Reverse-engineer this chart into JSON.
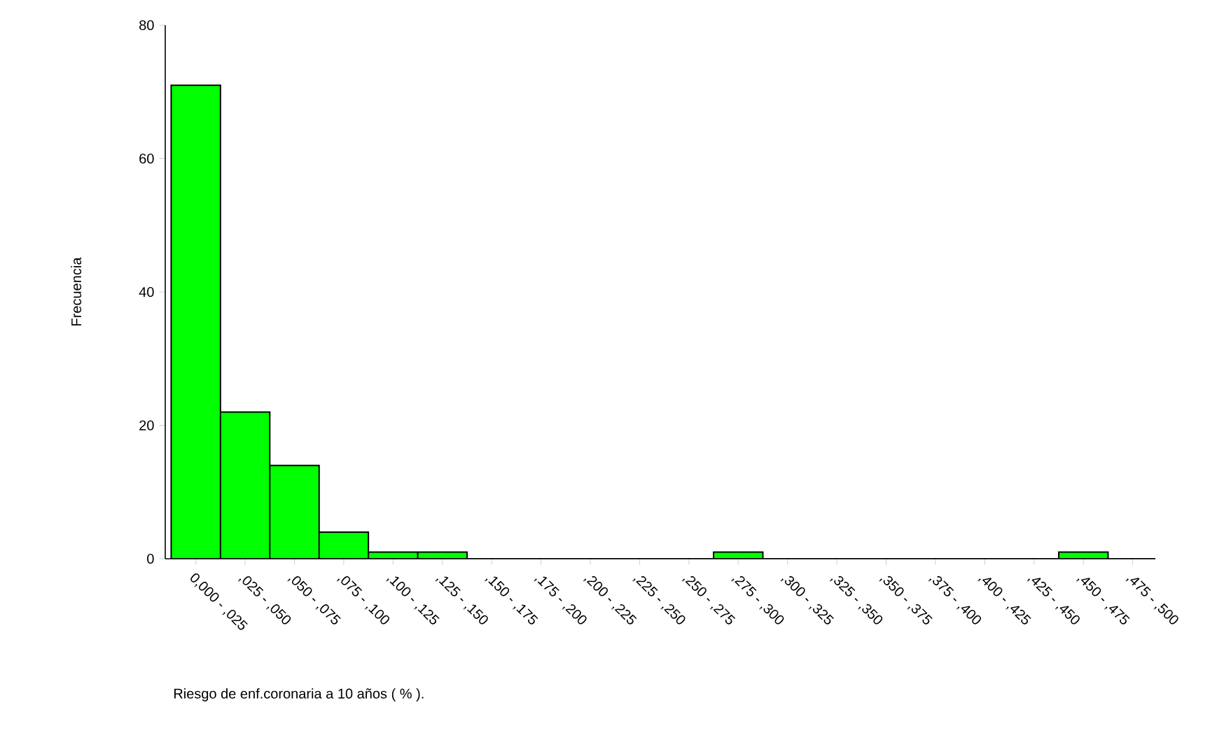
{
  "chart_data": {
    "type": "bar",
    "xlabel": "Riesgo de enf.coronaria a 10 años ( % ).",
    "ylabel": "Frecuencia",
    "categories": [
      "0,000 - ,025",
      ",025 - ,050",
      ",050 - ,075",
      ",075 - ,100",
      ",100 - ,125",
      ",125 - ,150",
      ",150 - ,175",
      ",175 - ,200",
      ",200 - ,225",
      ",225 - ,250",
      ",250 - ,275",
      ",275 - ,300",
      ",300 - ,325",
      ",325 - ,350",
      ",350 - ,375",
      ",375 - ,400",
      ",400 - ,425",
      ",425 - ,450",
      ",450 - ,475",
      ",475 - ,500"
    ],
    "values": [
      71,
      22,
      14,
      4,
      1,
      1,
      0,
      0,
      0,
      0,
      0,
      1,
      0,
      0,
      0,
      0,
      0,
      0,
      1,
      0
    ],
    "color": "#00ff00",
    "ylim": [
      0,
      80
    ],
    "yticks": [
      0,
      20,
      40,
      60,
      80
    ],
    "grid": false
  }
}
